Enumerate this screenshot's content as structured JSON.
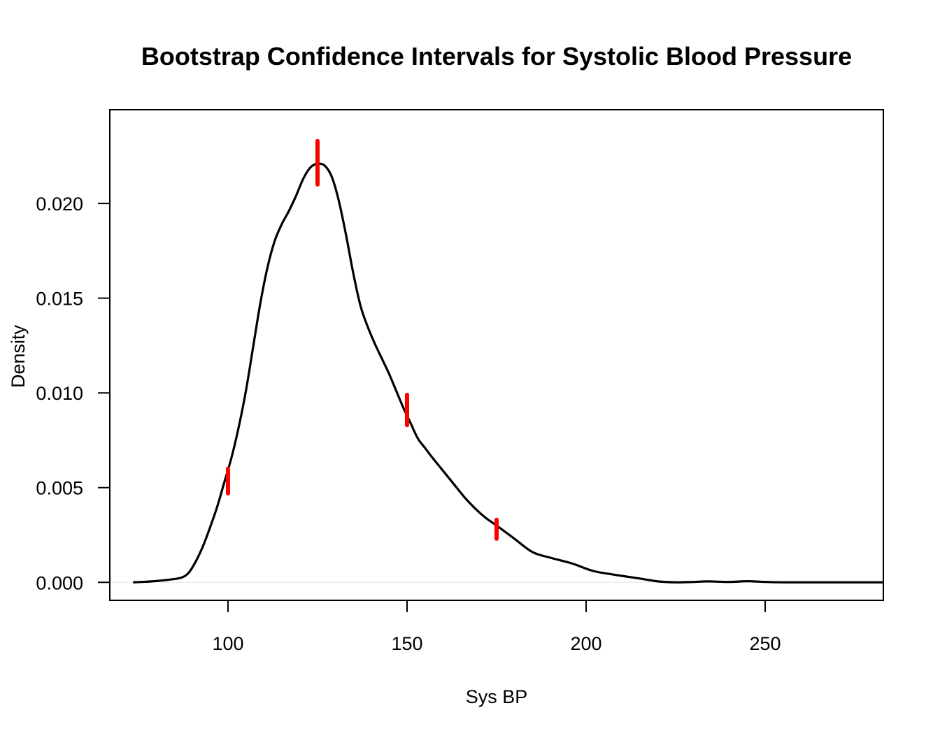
{
  "chart_data": {
    "type": "line",
    "title": "Bootstrap Confidence Intervals for Systolic Blood Pressure",
    "xlabel": "Sys BP",
    "ylabel": "Density",
    "xlim": [
      67,
      283
    ],
    "ylim": [
      -0.00095,
      0.02495
    ],
    "x_ticks": [
      100,
      150,
      200,
      250
    ],
    "y_ticks": [
      0.0,
      0.005,
      0.01,
      0.015,
      0.02
    ],
    "x_tick_labels": [
      "100",
      "150",
      "200",
      "250"
    ],
    "y_tick_labels": [
      "0.000",
      "0.005",
      "0.010",
      "0.015",
      "0.020"
    ],
    "grid": false,
    "series": [
      {
        "color": "#000000",
        "x": [
          73.5,
          77,
          80,
          84,
          87,
          89,
          91,
          93,
          95,
          97,
          99,
          101,
          103,
          105,
          107,
          109,
          111,
          113,
          115,
          117,
          119,
          121,
          123,
          125,
          127,
          129,
          131,
          133,
          135,
          137,
          139,
          141,
          143,
          145,
          147,
          149,
          151,
          153,
          155,
          157,
          160,
          163,
          166,
          169,
          172,
          175,
          180,
          185,
          190,
          196,
          202,
          208,
          215,
          220,
          225,
          230,
          234,
          240,
          245,
          250,
          255,
          260,
          270,
          283
        ],
        "values": [
          0.0,
          3e-05,
          7e-05,
          0.00015,
          0.00025,
          0.0005,
          0.0011,
          0.0019,
          0.0029,
          0.004,
          0.0053,
          0.0066,
          0.0082,
          0.0101,
          0.0124,
          0.0147,
          0.0166,
          0.018,
          0.0189,
          0.0196,
          0.0204,
          0.0213,
          0.0219,
          0.0221,
          0.022,
          0.0214,
          0.0201,
          0.0183,
          0.0163,
          0.0146,
          0.0135,
          0.0126,
          0.0118,
          0.011,
          0.0101,
          0.0092,
          0.0084,
          0.0076,
          0.0071,
          0.0066,
          0.0059,
          0.0052,
          0.0045,
          0.0039,
          0.0034,
          0.003,
          0.0023,
          0.0016,
          0.0013,
          0.001,
          0.0006,
          0.0004,
          0.0002,
          5e-05,
          0.0,
          2e-05,
          5e-05,
          2e-05,
          6e-05,
          2e-05,
          0.0,
          0.0,
          0.0,
          0.0
        ]
      }
    ],
    "markers": {
      "color": "#ff0000",
      "points": [
        {
          "x": 100,
          "y_low": 0.0047,
          "y_high": 0.006
        },
        {
          "x": 125,
          "y_low": 0.021,
          "y_high": 0.0233
        },
        {
          "x": 150,
          "y_low": 0.0083,
          "y_high": 0.0099
        },
        {
          "x": 175,
          "y_low": 0.0023,
          "y_high": 0.0033
        }
      ]
    },
    "zero_line": true
  }
}
